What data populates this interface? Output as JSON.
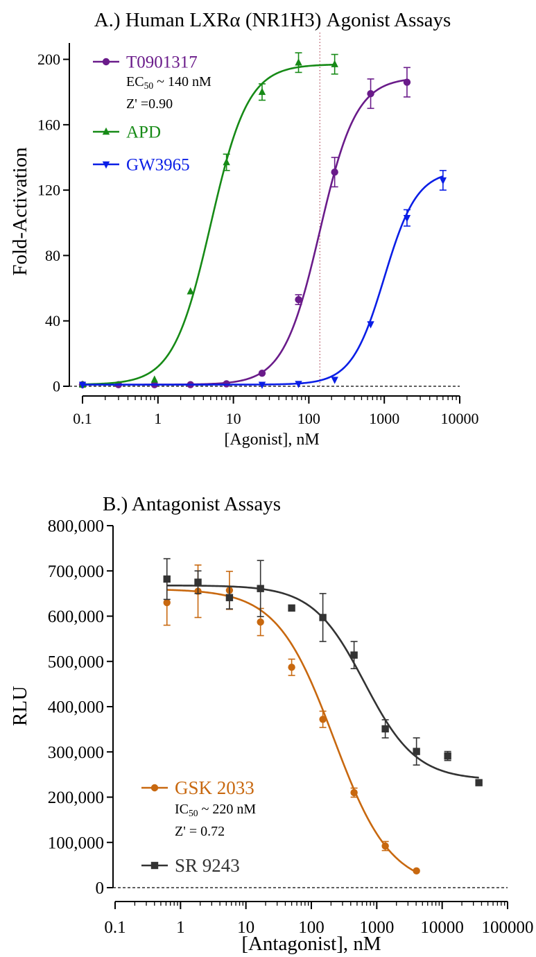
{
  "chart_data": [
    {
      "type": "line",
      "title": "A.) Human LXRα (NR1H3) Agonist Assays",
      "xlabel": "[Agonist], nM",
      "ylabel": "Fold-Activation",
      "xscale": "log",
      "xlim": [
        0.1,
        10000
      ],
      "ylim": [
        0,
        210
      ],
      "x_ticks": [
        0.1,
        1,
        10,
        100,
        1000,
        10000
      ],
      "x_tick_labels": [
        "0.1",
        "1",
        "10",
        "100",
        "1000",
        "10000"
      ],
      "y_ticks": [
        0,
        40,
        80,
        120,
        160,
        200
      ],
      "y_tick_labels": [
        "0",
        "40",
        "80",
        "120",
        "160",
        "200"
      ],
      "legend_position": "top-left",
      "baseline": 0,
      "reference_x": 140,
      "series": [
        {
          "name": "T0901317",
          "color": "#6a1b8a",
          "marker": "circle",
          "x": [
            0.1,
            0.3,
            0.9,
            2.7,
            8.1,
            24,
            73,
            220,
            660,
            2000
          ],
          "y": [
            1,
            1,
            1,
            1,
            1.5,
            8,
            53,
            131,
            179,
            186
          ],
          "err": [
            0,
            0,
            0,
            0,
            0,
            0,
            3,
            9,
            9,
            9
          ],
          "fit": {
            "bottom": 1,
            "top": 189,
            "ec50": 140,
            "hill": 1.8
          },
          "annotations": [
            "EC50 ~ 140 nM",
            "Z' =0.90"
          ]
        },
        {
          "name": "APD",
          "color": "#168a16",
          "marker": "triangle-up",
          "x": [
            0.1,
            0.9,
            2.7,
            8.1,
            24,
            73,
            220
          ],
          "y": [
            1,
            4,
            58,
            137,
            180,
            198,
            197
          ],
          "err": [
            0,
            0,
            0,
            5,
            5,
            6,
            6
          ],
          "fit": {
            "bottom": 1,
            "top": 197,
            "ec50": 5,
            "hill": 1.75
          }
        },
        {
          "name": "GW3965",
          "color": "#0a1ee6",
          "marker": "triangle-down",
          "x": [
            0.1,
            24,
            73,
            220,
            660,
            2000,
            6000
          ],
          "y": [
            1,
            1,
            1.5,
            4,
            38,
            103,
            126
          ],
          "err": [
            0,
            0,
            0,
            0,
            0,
            5,
            6
          ],
          "fit": {
            "bottom": 1,
            "top": 132,
            "ec50": 1000,
            "hill": 2.0
          }
        }
      ]
    },
    {
      "type": "line",
      "title": "B.) Antagonist Assays",
      "xlabel": "[Antagonist], nM",
      "ylabel": "RLU",
      "xscale": "log",
      "xlim": [
        0.1,
        100000
      ],
      "ylim": [
        0,
        800000
      ],
      "x_ticks": [
        0.1,
        1,
        10,
        100,
        1000,
        10000,
        100000
      ],
      "x_tick_labels": [
        "0.1",
        "1",
        "10",
        "100",
        "1000",
        "10000",
        "100000"
      ],
      "y_ticks": [
        0,
        100000,
        200000,
        300000,
        400000,
        500000,
        600000,
        700000,
        800000
      ],
      "y_tick_labels": [
        "0",
        "100,000",
        "200,000",
        "300,000",
        "400,000",
        "500,000",
        "600,000",
        "700,000",
        "800,000"
      ],
      "legend_position": "bottom-left",
      "baseline": 0,
      "series": [
        {
          "name": "GSK 2033",
          "color": "#c8680f",
          "marker": "circle",
          "x": [
            0.62,
            1.85,
            5.6,
            16.7,
            50,
            150,
            450,
            1350,
            4050
          ],
          "y": [
            630000,
            655000,
            657000,
            587000,
            487000,
            372000,
            210000,
            92000,
            37000
          ],
          "err": [
            50000,
            58000,
            42000,
            30000,
            18000,
            18000,
            10000,
            10000,
            0
          ],
          "fit": {
            "bottom": 0,
            "top": 660000,
            "ic50": 220,
            "hill": 1.0
          },
          "annotations": [
            "IC50 ~ 220 nM",
            "Z' = 0.72"
          ]
        },
        {
          "name": "SR 9243",
          "color": "#333333",
          "marker": "square",
          "x": [
            0.62,
            1.85,
            5.6,
            16.7,
            50,
            150,
            450,
            1350,
            4050,
            12150,
            36450
          ],
          "y": [
            682000,
            675000,
            641000,
            661000,
            618000,
            597000,
            514000,
            351000,
            301000,
            291000,
            232000
          ],
          "err": [
            45000,
            25000,
            25000,
            62000,
            0,
            53000,
            30000,
            20000,
            30000,
            10000,
            0
          ],
          "fit": {
            "bottom": 238000,
            "top": 668000,
            "ic50": 650,
            "hill": 1.1
          }
        }
      ]
    }
  ]
}
